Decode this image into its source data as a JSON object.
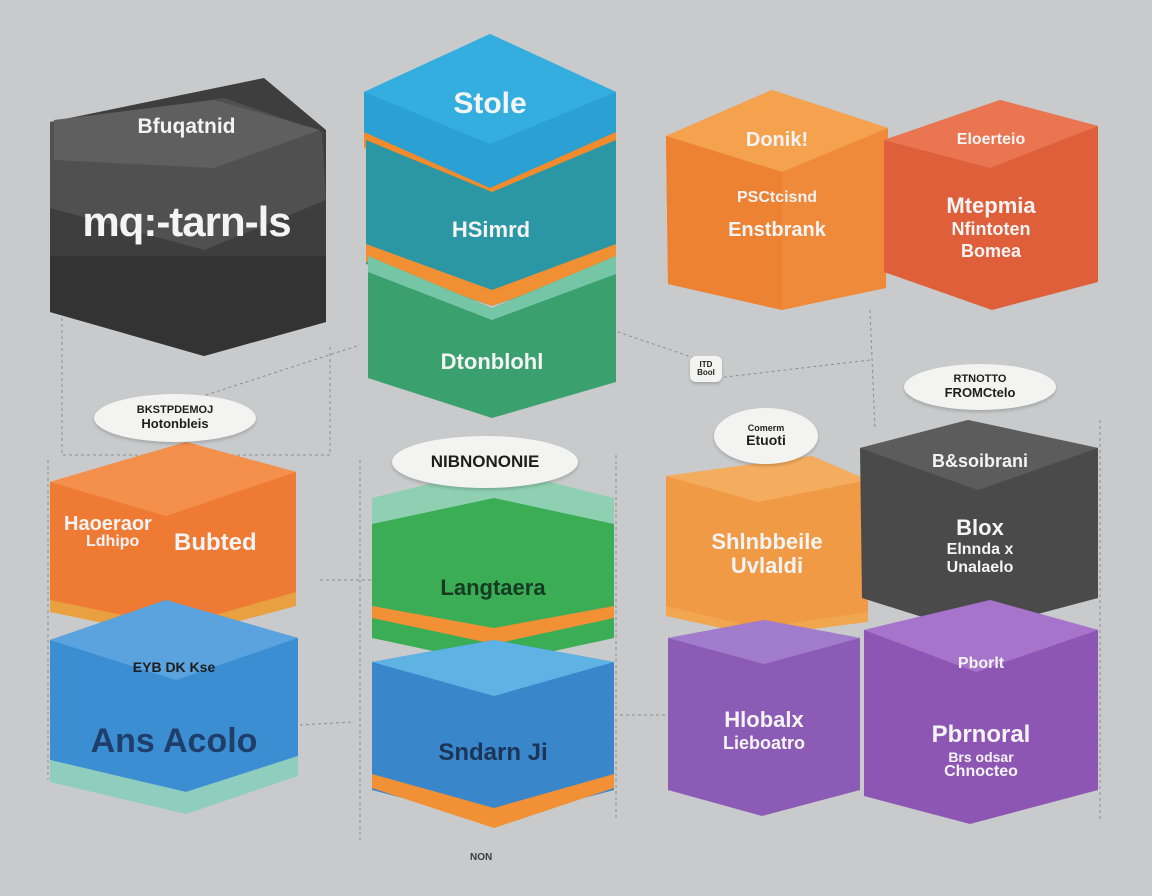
{
  "colors": {
    "background": "#c9cacb",
    "charcoal": "#464646",
    "blue_sky": "#2aa1d6",
    "teal": "#2a9aa6",
    "green_dark": "#3ba56f",
    "orange": "#f08b3a",
    "red_orange": "#e2623c",
    "green": "#3cae57",
    "blue": "#3a8ed0",
    "purple": "#8e5db7",
    "accent_orange": "#ef9c3a"
  },
  "blocks": {
    "charcoal_top": {
      "top_label": "Bfuqatnid",
      "main_label": "mq:-tarn-ls"
    },
    "center_top": {
      "label": "Stole"
    },
    "center_teal": {
      "label": "HSimrd"
    },
    "center_green_upper": {
      "label": "Dtonblohl"
    },
    "orange_top": {
      "top_label": "Donik!",
      "line1": "PSCtcisnd",
      "line2": "Enstbrank"
    },
    "red_top": {
      "top_label": "Eloerteio",
      "line1": "Mtepmia",
      "line2": "Nfintoten",
      "line3": "Bomea"
    },
    "orange_left": {
      "label_left": "Haoeraor",
      "label_right": "Bubted",
      "line2": "Ldhipo"
    },
    "blue_left": {
      "top_label": "EYB DK Kse",
      "main_label": "Ans Acolo"
    },
    "center_green_lower": {
      "label": "Langtaera"
    },
    "center_blue": {
      "label": "Sndarn Ji"
    },
    "orange_right": {
      "line1": "Shlnbbeile",
      "line2": "Uvlaldi"
    },
    "charcoal_right": {
      "top_label": "B&soibrani",
      "line1": "Blox",
      "line2": "Elnnda x",
      "line3": "Unalaelo"
    },
    "purple_left": {
      "line1": "Hlobalx",
      "line2": "Lieboatro"
    },
    "purple_right": {
      "top_label": "Pborlt",
      "line1": "Pbrnoral",
      "line2": "Brs odsar",
      "line3": "Chnocteo"
    }
  },
  "bubbles": {
    "left": {
      "line1": "BKSTPDEMOJ",
      "line2": "Hotonbleis"
    },
    "center": {
      "line1": "NIBNONONIE"
    },
    "mid_right": {
      "line1": "Comerm",
      "line2": "Etuoti"
    },
    "right": {
      "line1": "RTNOTTO",
      "line2": "FROMCtelo"
    },
    "tag": {
      "line1": "ITD",
      "line2": "Bool"
    }
  },
  "footer": {
    "text": "NON"
  }
}
